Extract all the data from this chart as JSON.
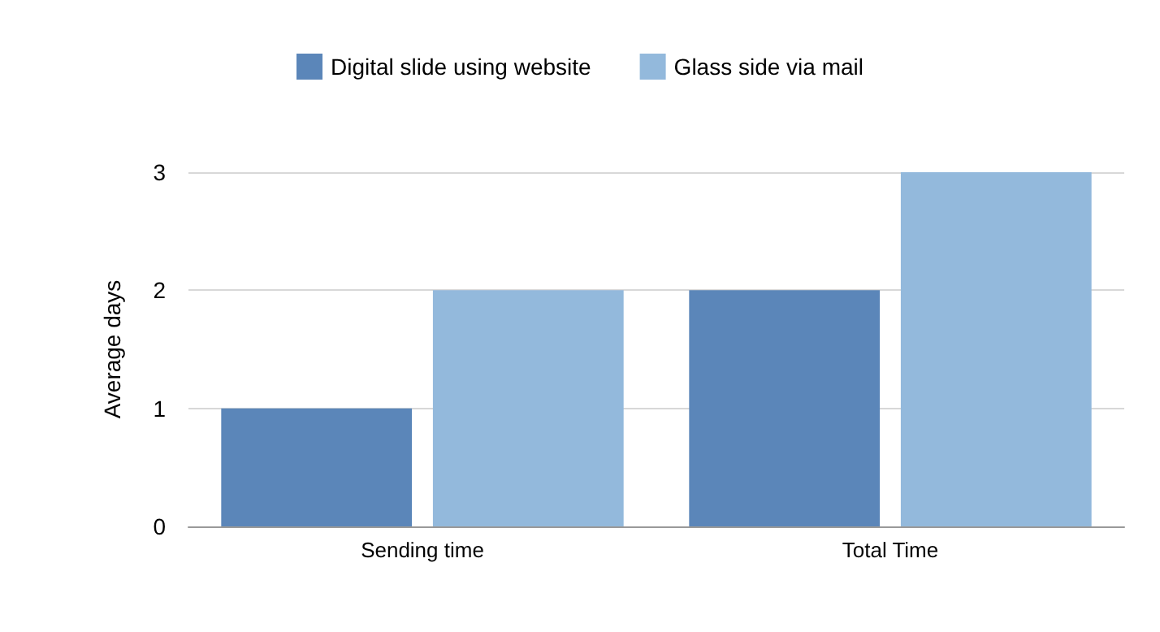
{
  "chart_data": {
    "type": "bar",
    "ylabel": "Average days",
    "categories": [
      "Sending time",
      "Total Time"
    ],
    "series": [
      {
        "name": "Digital slide using website",
        "color": "#5b86b9",
        "values": [
          1,
          2
        ]
      },
      {
        "name": "Glass side via mail",
        "color": "#93b9dc",
        "values": [
          2,
          3
        ]
      }
    ],
    "ylim": [
      0,
      3
    ],
    "yticks": [
      0,
      1,
      2,
      3
    ],
    "grid": "y",
    "legend": "top"
  }
}
